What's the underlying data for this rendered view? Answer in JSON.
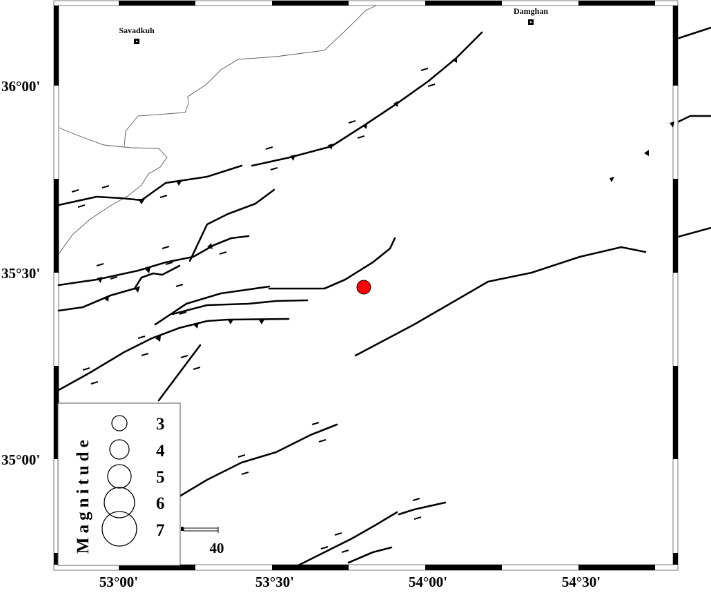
{
  "map": {
    "lon_labels": [
      "53°00'",
      "53°30'",
      "54°00'",
      "54°30'"
    ],
    "lat_labels": [
      "36°00'",
      "35°30'",
      "35°00'"
    ],
    "cities": [
      {
        "name": "Savadkuh",
        "icon": "city-square-icon"
      },
      {
        "name": "Damghan",
        "icon": "city-square-icon"
      }
    ],
    "epicenter": {
      "color": "#ff0000",
      "icon": "epicenter-circle-icon"
    },
    "scale_bar": {
      "label": "40"
    }
  },
  "legend": {
    "title": "Magnitude",
    "magnitudes": [
      "3",
      "4",
      "5",
      "6",
      "7"
    ]
  }
}
